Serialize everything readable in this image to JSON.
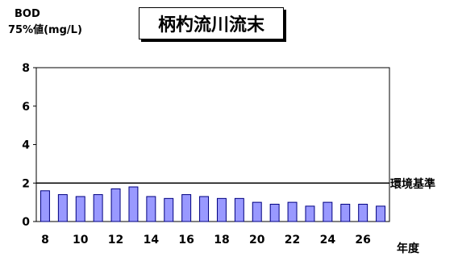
{
  "chart_data": {
    "type": "bar",
    "title": "柄杓流川流末",
    "ylabel_line1": "BOD",
    "ylabel_line2": "75%値(mg/L)",
    "xlabel": "年度",
    "reference_line": {
      "value": 2,
      "label": "環境基準"
    },
    "categories": [
      "8",
      "9",
      "10",
      "11",
      "12",
      "13",
      "14",
      "15",
      "16",
      "17",
      "18",
      "19",
      "20",
      "21",
      "22",
      "23",
      "24",
      "25",
      "26",
      "27"
    ],
    "tick_labels": [
      "8",
      "10",
      "12",
      "14",
      "16",
      "18",
      "20",
      "22",
      "24",
      "26"
    ],
    "values": [
      1.6,
      1.4,
      1.3,
      1.4,
      1.7,
      1.8,
      1.3,
      1.2,
      1.4,
      1.3,
      1.2,
      1.2,
      1.0,
      0.9,
      1.0,
      0.8,
      1.0,
      0.9,
      0.9,
      0.8
    ],
    "ylim": [
      0,
      8
    ],
    "yticks": [
      0,
      2,
      4,
      6,
      8
    ],
    "grid": false,
    "legend": "none",
    "colors": {
      "bar": "#9999ff",
      "bar_edge": "#000080",
      "axis": "#000000"
    }
  }
}
